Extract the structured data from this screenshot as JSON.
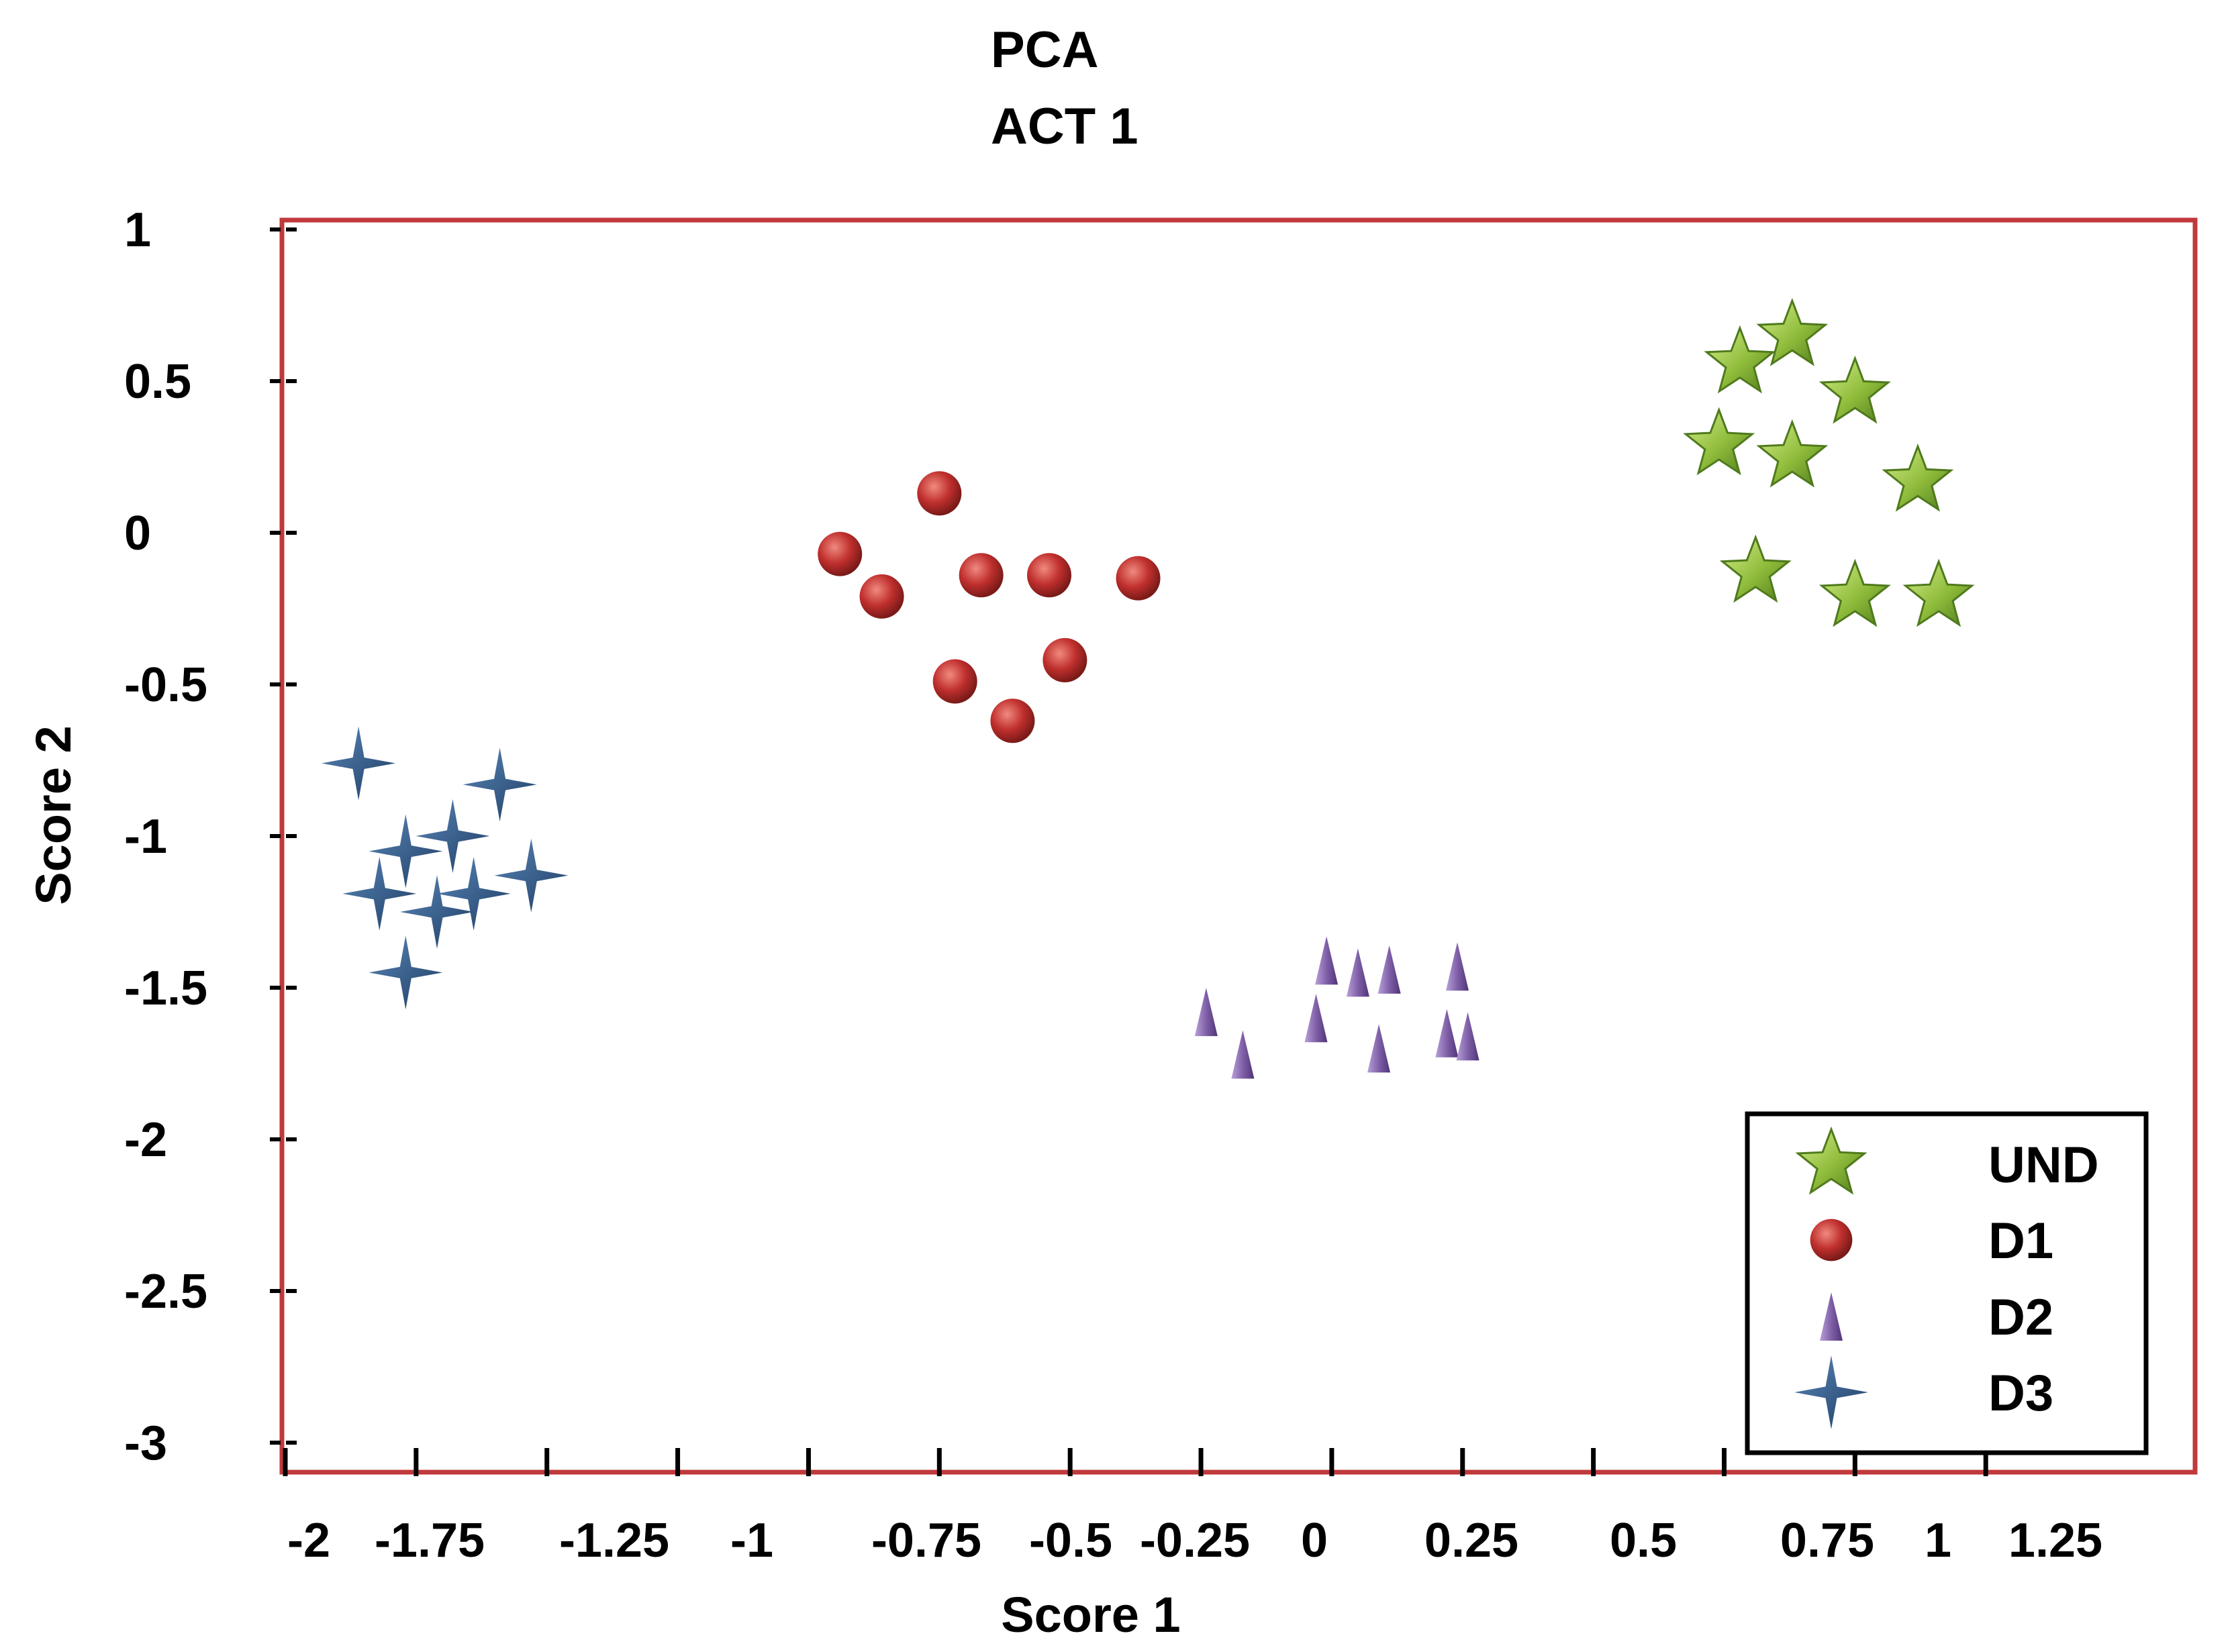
{
  "chart_data": {
    "type": "scatter",
    "title": "PCA",
    "subtitle": "ACT 1",
    "xlabel": "Score 1",
    "ylabel": "Score 2",
    "xlim": [
      -2,
      1.65
    ],
    "ylim": [
      -3,
      1
    ],
    "grid": false,
    "legend_position": "bottom-right",
    "plot_border_color": "#c0393b",
    "x_ticks": [
      {
        "value": -2,
        "label": "-2"
      },
      {
        "value": -1.75,
        "label": "-1.75"
      },
      {
        "value": -1.5,
        "label": ""
      },
      {
        "value": -1.25,
        "label": "-1.25"
      },
      {
        "value": -1,
        "label": "-1"
      },
      {
        "value": -0.75,
        "label": "-0.75"
      },
      {
        "value": -0.5,
        "label": "-0.5"
      },
      {
        "value": -0.25,
        "label": "-0.25"
      },
      {
        "value": 0,
        "label": "0"
      },
      {
        "value": 0.25,
        "label": "0.25"
      },
      {
        "value": 0.5,
        "label": "0.5"
      },
      {
        "value": 0.75,
        "label": "0.75"
      },
      {
        "value": 1,
        "label": "1"
      },
      {
        "value": 1.25,
        "label": "1.25"
      }
    ],
    "y_ticks": [
      {
        "value": 1,
        "label": "1"
      },
      {
        "value": 0.5,
        "label": "0.5"
      },
      {
        "value": 0,
        "label": "0"
      },
      {
        "value": -0.5,
        "label": "-0.5"
      },
      {
        "value": -1,
        "label": "-1"
      },
      {
        "value": -1.5,
        "label": "-1.5"
      },
      {
        "value": -2,
        "label": "-2"
      },
      {
        "value": -2.5,
        "label": "-2.5"
      },
      {
        "value": -3,
        "label": "-3"
      }
    ],
    "series": [
      {
        "name": "UND",
        "marker": "star5",
        "color": "#8fbc3b",
        "points": [
          [
            0.78,
            0.56
          ],
          [
            0.88,
            0.65
          ],
          [
            1.0,
            0.46
          ],
          [
            0.74,
            0.29
          ],
          [
            0.88,
            0.25
          ],
          [
            1.12,
            0.17
          ],
          [
            0.81,
            -0.13
          ],
          [
            1.0,
            -0.21
          ],
          [
            1.16,
            -0.21
          ]
        ]
      },
      {
        "name": "D1",
        "marker": "circle",
        "color": "#c0302e",
        "points": [
          [
            -0.75,
            0.13
          ],
          [
            -0.94,
            -0.07
          ],
          [
            -0.86,
            -0.21
          ],
          [
            -0.67,
            -0.14
          ],
          [
            -0.54,
            -0.14
          ],
          [
            -0.37,
            -0.15
          ],
          [
            -0.51,
            -0.42
          ],
          [
            -0.72,
            -0.49
          ],
          [
            -0.61,
            -0.62
          ]
        ]
      },
      {
        "name": "D2",
        "marker": "triangle",
        "color": "#8060a8",
        "points": [
          [
            -0.01,
            -1.41
          ],
          [
            0.05,
            -1.45
          ],
          [
            0.11,
            -1.44
          ],
          [
            0.24,
            -1.43
          ],
          [
            -0.24,
            -1.58
          ],
          [
            -0.03,
            -1.6
          ],
          [
            0.22,
            -1.65
          ],
          [
            0.26,
            -1.66
          ],
          [
            -0.17,
            -1.72
          ],
          [
            0.09,
            -1.7
          ]
        ]
      },
      {
        "name": "D3",
        "marker": "star4",
        "color": "#2f5a8a",
        "points": [
          [
            -1.86,
            -0.76
          ],
          [
            -1.59,
            -0.83
          ],
          [
            -1.68,
            -1.0
          ],
          [
            -1.77,
            -1.05
          ],
          [
            -1.53,
            -1.13
          ],
          [
            -1.82,
            -1.19
          ],
          [
            -1.64,
            -1.19
          ],
          [
            -1.71,
            -1.25
          ],
          [
            -1.77,
            -1.45
          ]
        ]
      }
    ]
  }
}
